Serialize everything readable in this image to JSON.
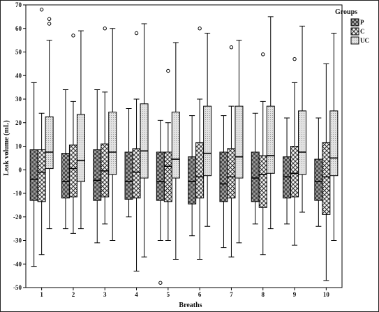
{
  "chart_data": {
    "type": "box",
    "ylabel": "Leak volume (mL)",
    "xlabel": "Breaths",
    "ylim": [
      -50,
      70
    ],
    "yticks": [
      -50,
      -40,
      -30,
      -20,
      -10,
      0,
      10,
      20,
      30,
      40,
      50,
      60,
      70
    ],
    "categories": [
      "1",
      "2",
      "3",
      "4",
      "5",
      "6",
      "7",
      "8",
      "9",
      "10"
    ],
    "legend": {
      "title": "Groups",
      "position": "top-right"
    },
    "series": [
      {
        "name": "P",
        "pattern": "checker",
        "color": "#808080",
        "boxes": [
          {
            "min": -41,
            "q1": -13,
            "median": -4,
            "q3": 8.5,
            "max": 37,
            "outliers": []
          },
          {
            "min": -25,
            "q1": -12,
            "median": -5,
            "q3": 7,
            "max": 34,
            "outliers": []
          },
          {
            "min": -31,
            "q1": -13,
            "median": -4.5,
            "q3": 8.5,
            "max": 34,
            "outliers": []
          },
          {
            "min": -20,
            "q1": -12.5,
            "median": -5,
            "q3": 7.5,
            "max": 26,
            "outliers": []
          },
          {
            "min": -30,
            "q1": -13,
            "median": -5,
            "q3": 7.5,
            "max": 21,
            "outliers": [
              -48
            ]
          },
          {
            "min": -28,
            "q1": -14.5,
            "median": -5,
            "q3": 5.5,
            "max": 23,
            "outliers": []
          },
          {
            "min": -33,
            "q1": -13.5,
            "median": -6,
            "q3": 7.5,
            "max": 23,
            "outliers": []
          },
          {
            "min": -23,
            "q1": -13.5,
            "median": -3.5,
            "q3": 7.5,
            "max": 24,
            "outliers": []
          },
          {
            "min": -23,
            "q1": -12,
            "median": -3,
            "q3": 5.5,
            "max": 22,
            "outliers": []
          },
          {
            "min": -24,
            "q1": -13,
            "median": -5,
            "q3": 4.5,
            "max": 22,
            "outliers": []
          }
        ]
      },
      {
        "name": "C",
        "pattern": "cross",
        "color": "#f2f2f2",
        "boxes": [
          {
            "min": -36,
            "q1": -13.5,
            "median": -1,
            "q3": 8.5,
            "max": 24,
            "outliers": [
              68
            ]
          },
          {
            "min": -27,
            "q1": -11.5,
            "median": 0.5,
            "q3": 10.5,
            "max": 29,
            "outliers": [
              57
            ]
          },
          {
            "min": -23,
            "q1": -11.5,
            "median": -0.5,
            "q3": 11,
            "max": 33,
            "outliers": [
              60
            ]
          },
          {
            "min": -43,
            "q1": -12,
            "median": -1,
            "q3": 9,
            "max": 30,
            "outliers": [
              58
            ]
          },
          {
            "min": -30,
            "q1": -13.5,
            "median": 1.5,
            "q3": 7.5,
            "max": 20,
            "outliers": [
              42
            ]
          },
          {
            "min": -38,
            "q1": -12,
            "median": -3,
            "q3": 11.5,
            "max": 30,
            "outliers": [
              60
            ]
          },
          {
            "min": -37,
            "q1": -12,
            "median": -3,
            "q3": 9,
            "max": 27,
            "outliers": [
              52
            ]
          },
          {
            "min": -36,
            "q1": -16,
            "median": -2,
            "q3": 6,
            "max": 29,
            "outliers": [
              49
            ]
          },
          {
            "min": -32,
            "q1": -11.5,
            "median": -1.5,
            "q3": 10,
            "max": 37,
            "outliers": [
              47
            ]
          },
          {
            "min": -47,
            "q1": -19,
            "median": -3,
            "q3": 11.5,
            "max": 45,
            "outliers": []
          }
        ]
      },
      {
        "name": "UC",
        "pattern": "fine",
        "color": "#d9d9d9",
        "boxes": [
          {
            "min": -25,
            "q1": 0.5,
            "median": 7.5,
            "q3": 22.5,
            "max": 55,
            "outliers": [
              62,
              64
            ]
          },
          {
            "min": -25,
            "q1": -5,
            "median": 4,
            "q3": 23.5,
            "max": 59,
            "outliers": []
          },
          {
            "min": -30,
            "q1": -2,
            "median": 7.5,
            "q3": 24.5,
            "max": 60,
            "outliers": []
          },
          {
            "min": -37,
            "q1": -3.5,
            "median": 8,
            "q3": 28,
            "max": 62,
            "outliers": []
          },
          {
            "min": -38,
            "q1": -3.5,
            "median": 4.5,
            "q3": 24.5,
            "max": 54,
            "outliers": []
          },
          {
            "min": -24,
            "q1": -2.5,
            "median": 7,
            "q3": 27,
            "max": 58,
            "outliers": []
          },
          {
            "min": -31,
            "q1": -3.5,
            "median": 5.5,
            "q3": 27,
            "max": 55,
            "outliers": []
          },
          {
            "min": -25,
            "q1": -1.5,
            "median": 6,
            "q3": 27,
            "max": 65,
            "outliers": []
          },
          {
            "min": -18,
            "q1": -2,
            "median": 7.5,
            "q3": 25,
            "max": 61,
            "outliers": []
          },
          {
            "min": -30,
            "q1": -2.5,
            "median": 5,
            "q3": 25,
            "max": 58,
            "outliers": []
          }
        ]
      }
    ]
  }
}
